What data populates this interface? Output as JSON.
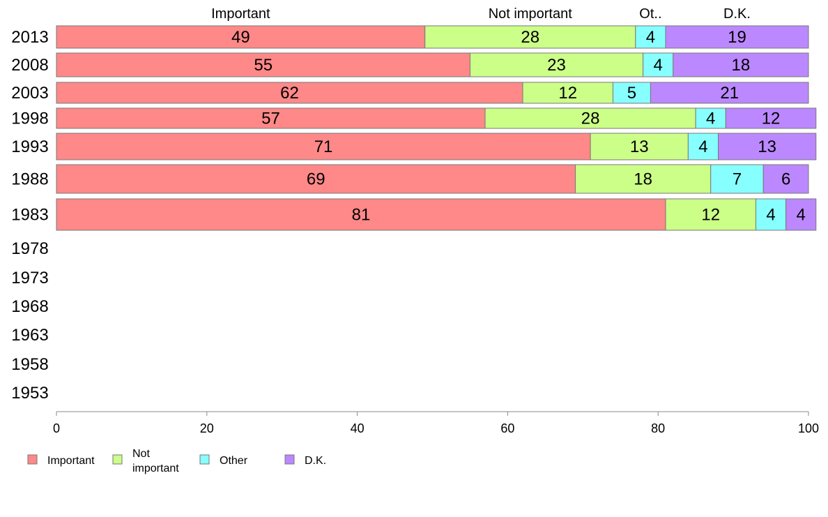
{
  "chart_data": {
    "type": "bar",
    "orientation": "horizontal",
    "stacked": true,
    "categories": [
      "2013",
      "2008",
      "2003",
      "1998",
      "1993",
      "1988",
      "1983",
      "1978",
      "1973",
      "1968",
      "1963",
      "1958",
      "1953"
    ],
    "series": [
      {
        "name": "Important",
        "color": "#ff8888",
        "values": [
          49,
          55,
          62,
          57,
          71,
          69,
          81,
          null,
          null,
          null,
          null,
          null,
          null
        ]
      },
      {
        "name": "Not important",
        "color": "#ccff88",
        "values": [
          28,
          23,
          12,
          28,
          13,
          18,
          12,
          null,
          null,
          null,
          null,
          null,
          null
        ]
      },
      {
        "name": "Other",
        "color": "#88ffff",
        "values": [
          4,
          4,
          5,
          4,
          4,
          7,
          4,
          null,
          null,
          null,
          null,
          null,
          null
        ]
      },
      {
        "name": "D.K.",
        "color": "#bb88ff",
        "values": [
          19,
          18,
          21,
          12,
          13,
          6,
          4,
          null,
          null,
          null,
          null,
          null,
          null
        ]
      }
    ],
    "column_headers": [
      "Important",
      "Not important",
      "Ot..",
      "D.K."
    ],
    "legend_labels": [
      "Important",
      "Not\nimportant",
      "Other",
      "D.K."
    ],
    "xlim": [
      0,
      100
    ],
    "x_ticks": [
      0,
      20,
      40,
      60,
      80,
      100
    ],
    "grid": false,
    "legend_position": "bottom-left"
  }
}
